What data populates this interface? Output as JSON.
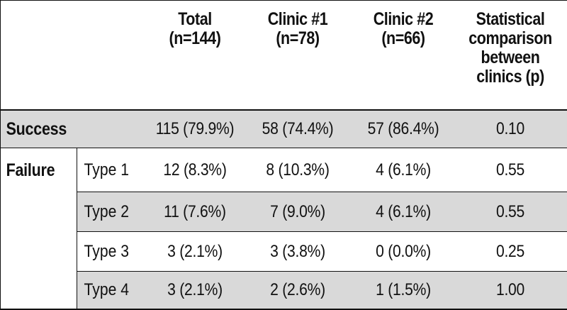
{
  "headers": {
    "total": [
      "Total",
      "(n=144)"
    ],
    "clinic1": [
      "Clinic #1",
      "(n=78)"
    ],
    "clinic2": [
      "Clinic #2",
      "(n=66)"
    ],
    "comparison": [
      "Statistical",
      "comparison",
      "between",
      "clinics (p)"
    ]
  },
  "rows": {
    "success": {
      "label": "Success",
      "total": "115 (79.9%)",
      "clinic1": "58 (74.4%)",
      "clinic2": "57 (86.4%)",
      "p": "0.10"
    },
    "failure_label": "Failure",
    "failure": [
      {
        "type": "Type 1",
        "total": "12 (8.3%)",
        "clinic1": "8 (10.3%)",
        "clinic2": "4 (6.1%)",
        "p": "0.55"
      },
      {
        "type": "Type 2",
        "total": "11 (7.6%)",
        "clinic1": "7 (9.0%)",
        "clinic2": "4 (6.1%)",
        "p": "0.55"
      },
      {
        "type": "Type 3",
        "total": "3 (2.1%)",
        "clinic1": "3 (3.8%)",
        "clinic2": "0 (0.0%)",
        "p": "0.25"
      },
      {
        "type": "Type 4",
        "total": "3 (2.1%)",
        "clinic1": "2 (2.6%)",
        "clinic2": "1 (1.5%)",
        "p": "1.00"
      }
    ]
  },
  "colors": {
    "shade": "#d9d9d9",
    "rule": "#111111"
  }
}
